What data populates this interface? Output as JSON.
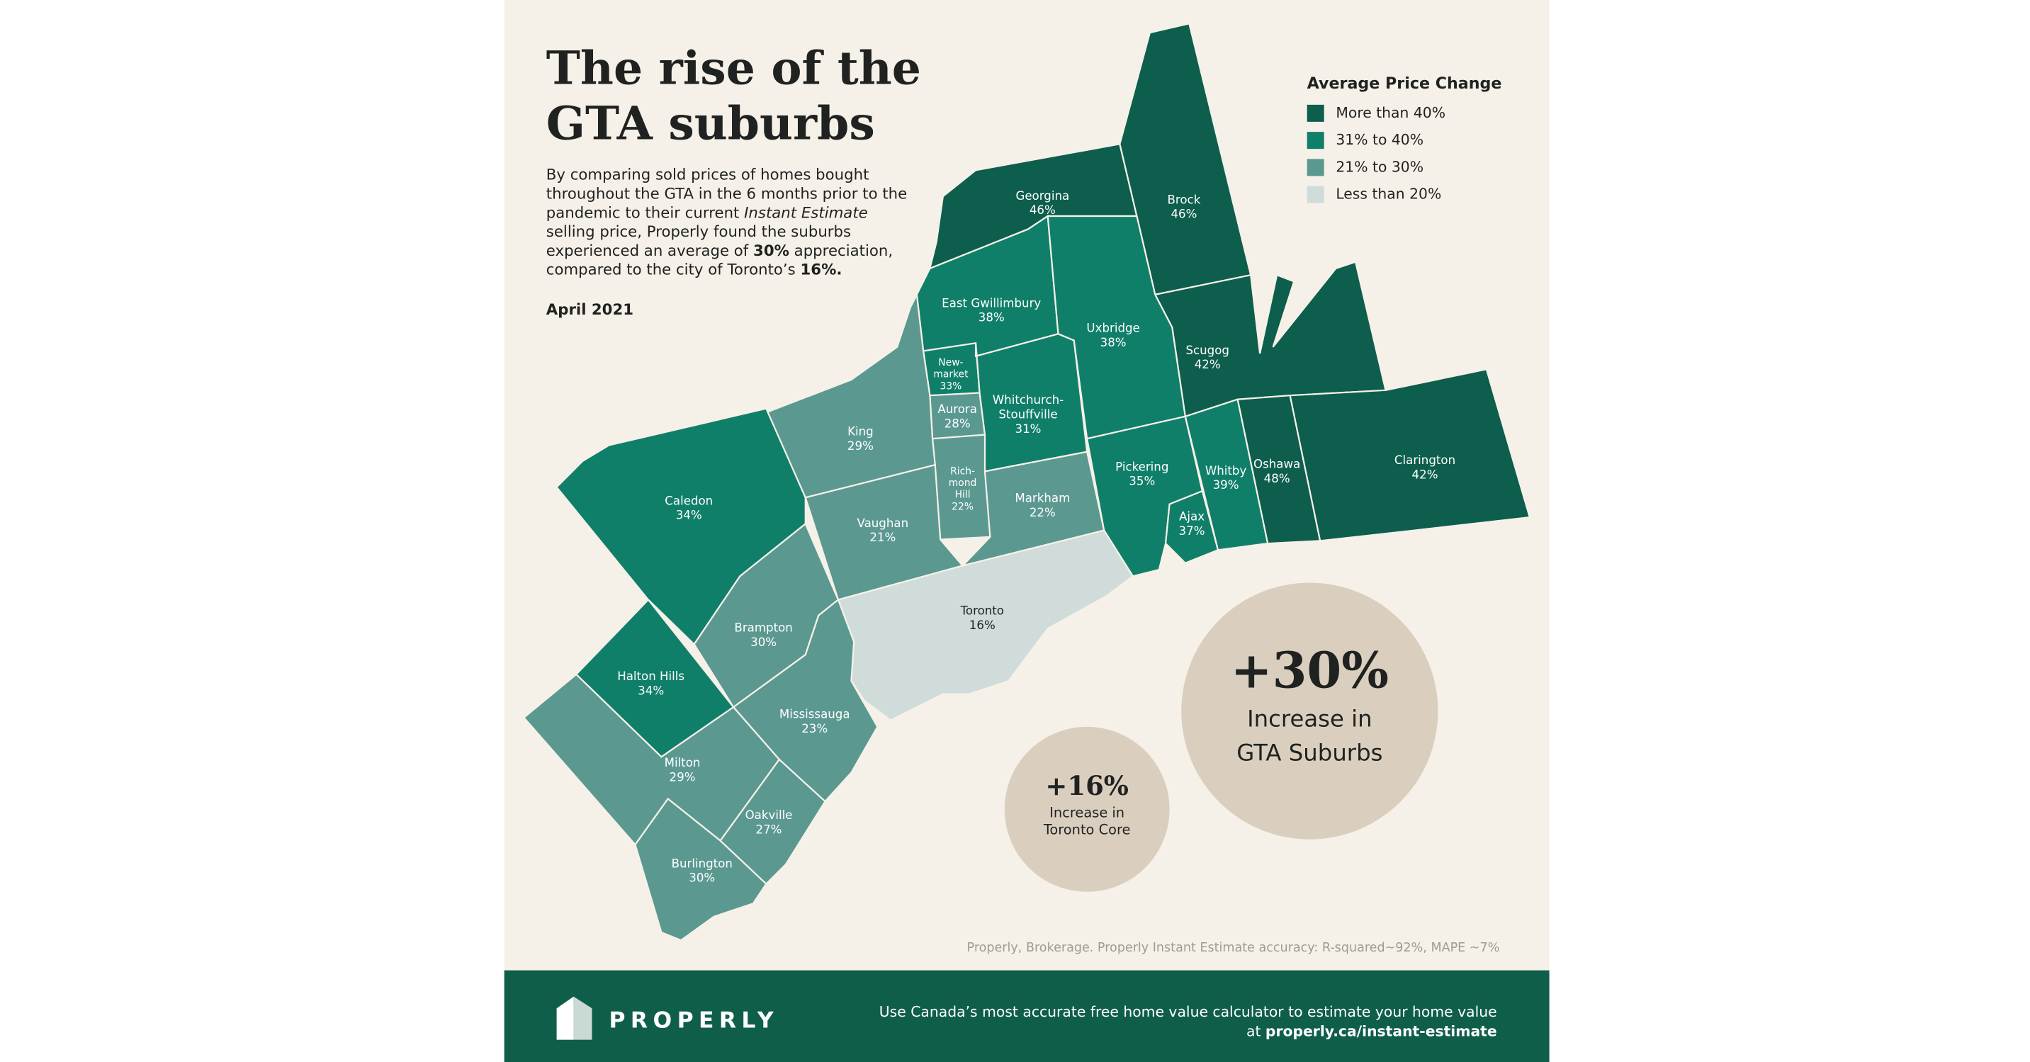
{
  "header": {
    "title": [
      "The rise of the",
      "GTA suburbs"
    ],
    "description": [
      [
        "By comparing sold prices of homes bought"
      ],
      [
        "throughout the GTA in the 6 months prior to the"
      ],
      [
        "pandemic to their current ",
        {
          "text": "Instant Estimate",
          "style": "italic"
        }
      ],
      [
        "selling price, Properly found the suburbs"
      ],
      [
        "experienced an average of ",
        {
          "text": "30%",
          "style": "bold"
        },
        " appreciation,"
      ],
      [
        "compared to the city of Toronto’s ",
        {
          "text": "16%.",
          "style": "bold"
        }
      ]
    ],
    "date": "April 2021"
  },
  "legend": {
    "title": "Average Price Change",
    "items": [
      {
        "label": "More than 40%",
        "color": "#0d5e4c"
      },
      {
        "label": "31% to 40%",
        "color": "#107f69"
      },
      {
        "label": "21% to 30%",
        "color": "#5b9990"
      },
      {
        "label": "Less than 20%",
        "color": "#cfdcda"
      }
    ]
  },
  "regions": [
    {
      "name": [
        "Georgina"
      ],
      "value": "46%",
      "color": "#0d5e4c"
    },
    {
      "name": [
        "Brock"
      ],
      "value": "46%",
      "color": "#0d5e4c"
    },
    {
      "name": [
        "Scugog"
      ],
      "value": "42%",
      "color": "#0d5e4c"
    },
    {
      "name": [
        "East Gwillimbury"
      ],
      "value": "38%",
      "color": "#107f69"
    },
    {
      "name": [
        "Uxbridge"
      ],
      "value": "38%",
      "color": "#107f69"
    },
    {
      "name": [
        "New-",
        "market"
      ],
      "value": "33%",
      "color": "#107f69"
    },
    {
      "name": [
        "Aurora"
      ],
      "value": "28%",
      "color": "#5b9990"
    },
    {
      "name": [
        "Rich-",
        "mond",
        "Hill"
      ],
      "value": "22%",
      "color": "#5b9990"
    },
    {
      "name": [
        "Whitchurch-",
        "Stouffville"
      ],
      "value": "31%",
      "color": "#107f69"
    },
    {
      "name": [
        "Markham"
      ],
      "value": "22%",
      "color": "#5b9990"
    },
    {
      "name": [
        "Pickering"
      ],
      "value": "35%",
      "color": "#107f69"
    },
    {
      "name": [
        "Ajax"
      ],
      "value": "37%",
      "color": "#107f69"
    },
    {
      "name": [
        "Whitby"
      ],
      "value": "39%",
      "color": "#107f69"
    },
    {
      "name": [
        "Oshawa"
      ],
      "value": "48%",
      "color": "#0d5e4c"
    },
    {
      "name": [
        "Clarington"
      ],
      "value": "42%",
      "color": "#0d5e4c"
    },
    {
      "name": [
        "King"
      ],
      "value": "29%",
      "color": "#5b9990"
    },
    {
      "name": [
        "Vaughan"
      ],
      "value": "21%",
      "color": "#5b9990"
    },
    {
      "name": [
        "Toronto"
      ],
      "value": "16%",
      "color": "#cfdcda"
    },
    {
      "name": [
        "Caledon"
      ],
      "value": "34%",
      "color": "#107f69"
    },
    {
      "name": [
        "Brampton"
      ],
      "value": "30%",
      "color": "#5b9990"
    },
    {
      "name": [
        "Halton Hills"
      ],
      "value": "34%",
      "color": "#107f69"
    },
    {
      "name": [
        "Mississauga"
      ],
      "value": "23%",
      "color": "#5b9990"
    },
    {
      "name": [
        "Milton"
      ],
      "value": "29%",
      "color": "#5b9990"
    },
    {
      "name": [
        "Oakville"
      ],
      "value": "27%",
      "color": "#5b9990"
    },
    {
      "name": [
        "Burlington"
      ],
      "value": "30%",
      "color": "#5b9990"
    }
  ],
  "callouts": [
    {
      "value": "+30%",
      "label": [
        "Increase in",
        "GTA Suburbs"
      ]
    },
    {
      "value": "+16%",
      "label": [
        "Increase in",
        "Toronto Core"
      ]
    }
  ],
  "source": "Properly, Brokerage. Properly Instant Estimate accuracy: R-squared~92%, MAPE ~7%",
  "footer": {
    "brand": "PROPERLY",
    "text": [
      "Use Canada’s most accurate free home value calculator to estimate your home value",
      [
        "at ",
        {
          "text": "properly.ca/instant-estimate",
          "style": "bold"
        }
      ]
    ]
  }
}
